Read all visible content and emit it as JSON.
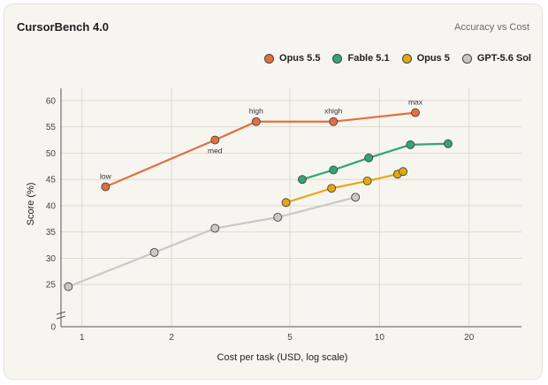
{
  "header": {
    "title": "CursorBench 4.0",
    "subtitle": "Accuracy vs Cost"
  },
  "chart_data": {
    "type": "line",
    "title": "CursorBench 4.0",
    "subtitle": "Accuracy vs Cost",
    "xlabel": "Cost per task (USD, log scale)",
    "ylabel": "Score (%)",
    "xscale": "log",
    "xlim": [
      0.85,
      30
    ],
    "ylim": [
      20,
      62
    ],
    "xticks": [
      1,
      2,
      5,
      10,
      20
    ],
    "yticks": [
      25,
      30,
      35,
      40,
      45,
      50,
      55,
      60
    ],
    "y_baseline_tick": 0,
    "y_axis_break": true,
    "grid": true,
    "legend": "top-right",
    "series": [
      {
        "name": "Opus 5.5",
        "color": "#e0703f",
        "x": [
          1.2,
          2.8,
          3.85,
          7.0,
          13.2
        ],
        "y": [
          43.6,
          52.5,
          56.0,
          56.0,
          57.7
        ],
        "labels": [
          "low",
          "med",
          "high",
          "xhigh",
          "max"
        ],
        "label_pos": [
          "above",
          "below",
          "above",
          "above",
          "above"
        ]
      },
      {
        "name": "Fable 5.1",
        "color": "#33a673",
        "x": [
          5.5,
          7.0,
          9.2,
          12.7,
          17.0
        ],
        "y": [
          45.0,
          46.8,
          49.1,
          51.6,
          51.8
        ]
      },
      {
        "name": "Opus 5",
        "color": "#e5a814",
        "x": [
          4.85,
          6.9,
          9.1,
          11.5,
          12.0
        ],
        "y": [
          40.6,
          43.3,
          44.7,
          46.0,
          46.5
        ]
      },
      {
        "name": "GPT-5.6 Sol",
        "color": "#c9c9c7",
        "x": [
          0.9,
          1.75,
          2.8,
          4.55,
          8.3
        ],
        "y": [
          24.6,
          31.1,
          35.7,
          37.8,
          41.6
        ]
      }
    ]
  }
}
